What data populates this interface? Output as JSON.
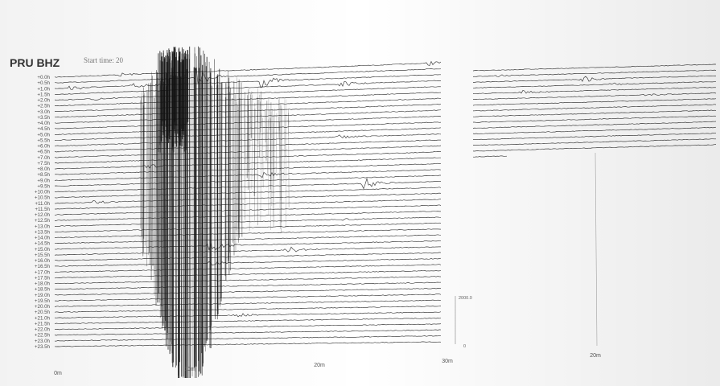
{
  "chart_data": {
    "type": "line",
    "title": "PRU BHZ",
    "subtitle": "Start time: 20",
    "row_labels": [
      "+0.0h",
      "+0.5h",
      "+1.0h",
      "+1.5h",
      "+2.0h",
      "+2.5h",
      "+3.0h",
      "+3.5h",
      "+4.0h",
      "+4.5h",
      "+5.0h",
      "+5.5h",
      "+6.0h",
      "+6.5h",
      "+7.0h",
      "+7.5h",
      "+8.0h",
      "+8.5h",
      "+9.0h",
      "+9.5h",
      "+10.0h",
      "+10.5h",
      "+11.0h",
      "+11.5h",
      "+12.0h",
      "+12.5h",
      "+13.0h",
      "+13.5h",
      "+14.0h",
      "+14.5h",
      "+15.0h",
      "+15.5h",
      "+16.0h",
      "+16.5h",
      "+17.0h",
      "+17.5h",
      "+18.0h",
      "+18.5h",
      "+19.0h",
      "+19.5h",
      "+20.0h",
      "+20.5h",
      "+21.0h",
      "+21.5h",
      "+22.0h",
      "+22.5h",
      "+23.0h",
      "+23.5h"
    ],
    "main_x_ticks": [
      "0m",
      "10m",
      "20m",
      "30m"
    ],
    "inset_x_ticks": [
      "20m"
    ],
    "scale_bar_labels": [
      "2000.0",
      "0"
    ],
    "events": [
      {
        "row": 0,
        "minute": 5,
        "amp": 1.5
      },
      {
        "row": 0,
        "minute": 29,
        "amp": 2
      },
      {
        "row": 2,
        "minute": 1,
        "amp": 3
      },
      {
        "row": 2,
        "minute": 6,
        "amp": 3
      },
      {
        "row": 4,
        "minute": 3,
        "amp": 1.5
      },
      {
        "row": 1,
        "minute": 11,
        "amp": 8
      },
      {
        "row": 2,
        "minute": 16,
        "amp": 6
      },
      {
        "row": 3,
        "minute": 22,
        "amp": 3
      },
      {
        "row": 12,
        "minute": 22,
        "amp": 2
      },
      {
        "row": 16,
        "minute": 7,
        "amp": 2
      },
      {
        "row": 18,
        "minute": 16,
        "amp": 4
      },
      {
        "row": 20,
        "minute": 24,
        "amp": 5
      },
      {
        "row": 22,
        "minute": 3,
        "amp": 1.5
      },
      {
        "row": 26,
        "minute": 22,
        "amp": 1
      },
      {
        "row": 30,
        "minute": 12,
        "amp": 5
      },
      {
        "row": 31,
        "minute": 18,
        "amp": 3
      },
      {
        "row": 33,
        "minute": 12,
        "amp": 2
      },
      {
        "row": 42,
        "minute": 14,
        "amp": 2
      }
    ],
    "inset_events": [
      {
        "row": 1,
        "minute": 2,
        "amp": 1
      },
      {
        "row": 2,
        "minute": 9,
        "amp": 3
      },
      {
        "row": 3,
        "minute": 11,
        "amp": 2
      },
      {
        "row": 4,
        "minute": 4,
        "amp": 2
      },
      {
        "row": 5,
        "minute": 14,
        "amp": 1.5
      }
    ]
  }
}
